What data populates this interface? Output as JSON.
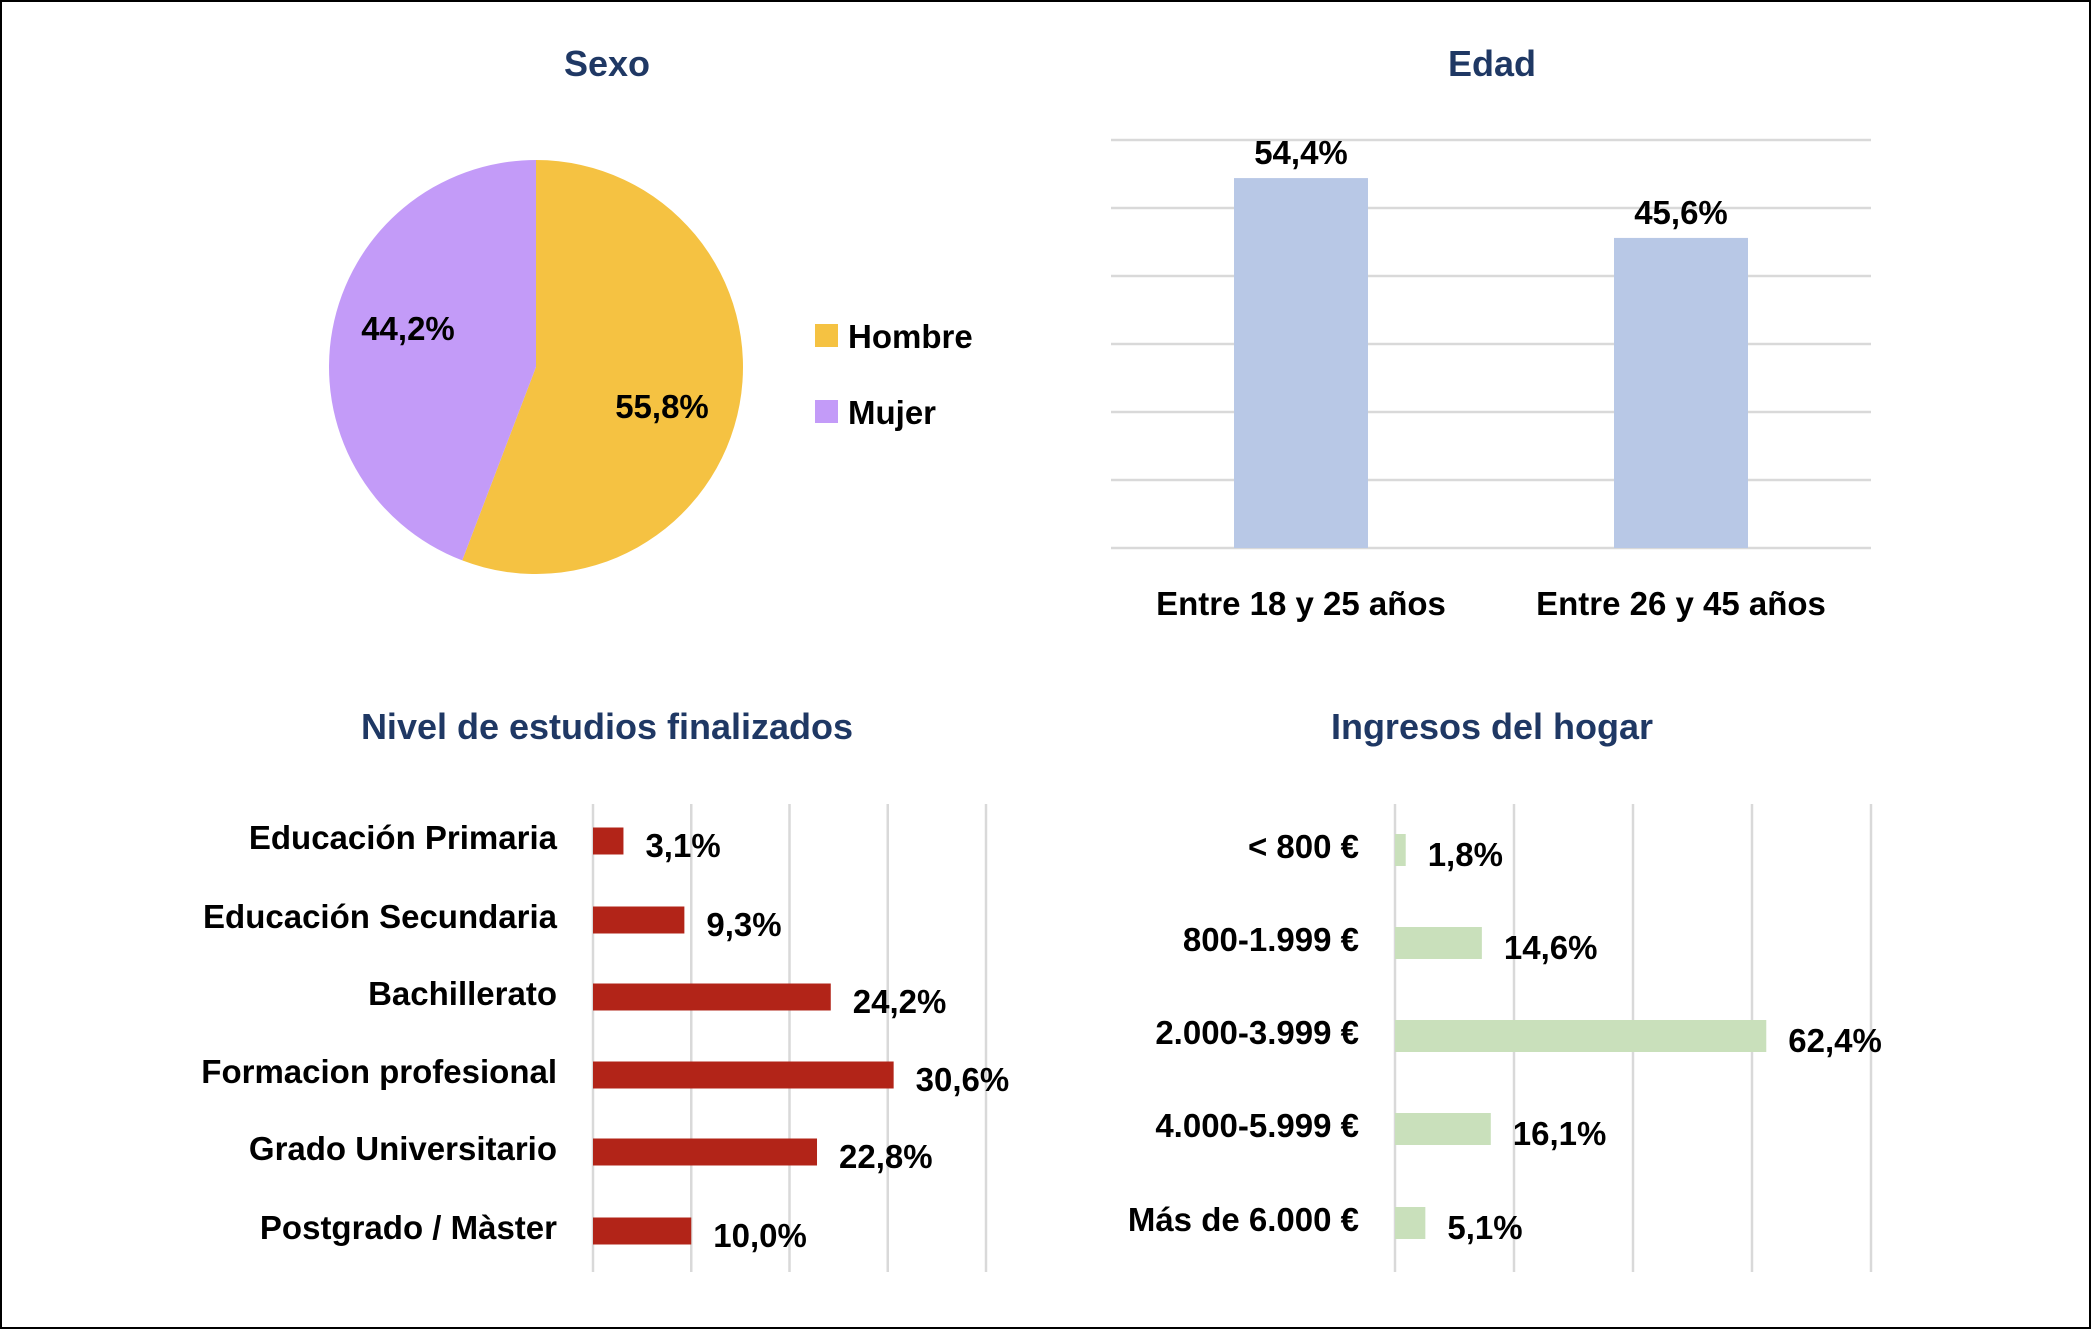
{
  "chart_data": [
    {
      "type": "pie",
      "title": "Sexo",
      "categories": [
        "Hombre",
        "Mujer"
      ],
      "values": [
        55.8,
        44.2
      ],
      "labels": [
        "55,8%",
        "44,2%"
      ],
      "colors": [
        "#F5C242",
        "#C39BF8"
      ],
      "legend": "right"
    },
    {
      "type": "bar",
      "title": "Edad",
      "categories": [
        "Entre 18 y 25 años",
        "Entre 26 y 45 años"
      ],
      "values": [
        54.4,
        45.6
      ],
      "labels": [
        "54,4%",
        "45,6%"
      ],
      "ylim": [
        0,
        60
      ],
      "ystep": 10,
      "grid": true,
      "color": "#B8C8E6"
    },
    {
      "type": "bar",
      "orientation": "horizontal",
      "title": "Nivel de estudios finalizados",
      "categories": [
        "Educación Primaria",
        "Educación Secundaria",
        "Bachillerato",
        "Formacion profesional",
        "Grado Universitario",
        "Postgrado / Màster"
      ],
      "values": [
        3.1,
        9.3,
        24.2,
        30.6,
        22.8,
        10.0
      ],
      "labels": [
        "3,1%",
        "9,3%",
        "24,2%",
        "30,6%",
        "22,8%",
        "10,0%"
      ],
      "xlim": [
        0,
        40
      ],
      "xstep": 10,
      "grid": true,
      "color": "#B22418"
    },
    {
      "type": "bar",
      "orientation": "horizontal",
      "title": "Ingresos del hogar",
      "categories": [
        "< 800 €",
        "800-1.999 €",
        "2.000-3.999 €",
        "4.000-5.999 €",
        "Más de 6.000 €"
      ],
      "values": [
        1.8,
        14.6,
        62.4,
        16.1,
        5.1
      ],
      "labels": [
        "1,8%",
        "14,6%",
        "62,4%",
        "16,1%",
        "5,1%"
      ],
      "xlim": [
        0,
        80
      ],
      "xstep": 20,
      "grid": true,
      "color": "#C9E0BB"
    }
  ]
}
